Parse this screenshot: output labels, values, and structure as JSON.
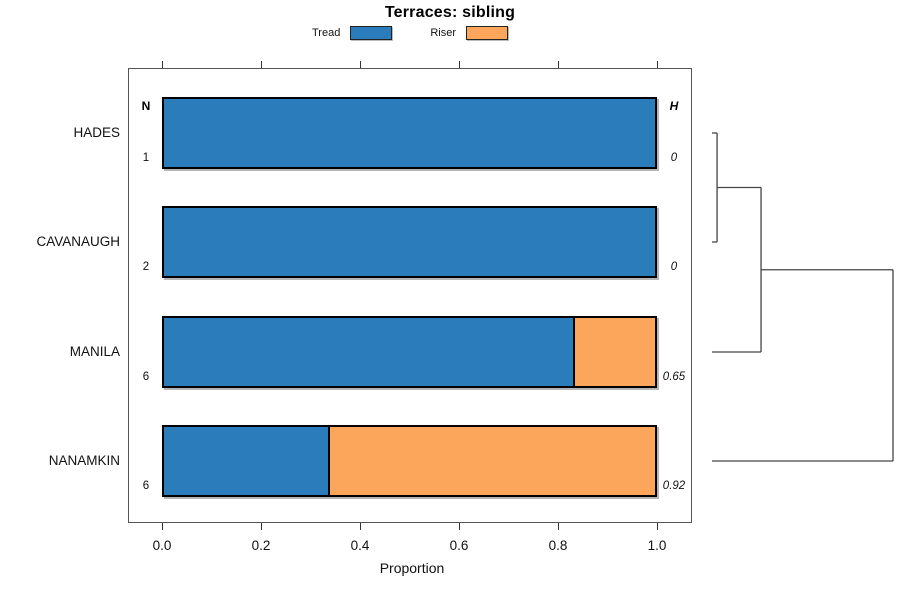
{
  "title": "Terraces: sibling",
  "legend": {
    "items": [
      {
        "label": "Tread",
        "color": "#2B7CBA"
      },
      {
        "label": "Riser",
        "color": "#FBA65B"
      }
    ]
  },
  "columns": {
    "n_header": "N",
    "h_header": "H"
  },
  "xaxis": {
    "label": "Proportion",
    "ticks": [
      "0.0",
      "0.2",
      "0.4",
      "0.6",
      "0.8",
      "1.0"
    ],
    "tick_values": [
      0.0,
      0.2,
      0.4,
      0.6,
      0.8,
      1.0
    ],
    "range": [
      0,
      1
    ]
  },
  "chart_data": {
    "type": "bar",
    "orientation": "horizontal",
    "stacked": true,
    "title": "Terraces: sibling",
    "xlabel": "Proportion",
    "xlim": [
      0,
      1
    ],
    "grid": false,
    "legend_position": "top",
    "categories": [
      "HADES",
      "CAVANAUGH",
      "MANILA",
      "NANAMKIN"
    ],
    "n_values": [
      "1",
      "2",
      "6",
      "6"
    ],
    "h_values": [
      "0",
      "0",
      "0.65",
      "0.92"
    ],
    "series": [
      {
        "name": "Tread",
        "color": "#2B7CBA",
        "values": [
          1.0,
          1.0,
          0.833,
          0.333
        ]
      },
      {
        "name": "Riser",
        "color": "#FBA65B",
        "values": [
          0.0,
          0.0,
          0.167,
          0.667
        ]
      }
    ],
    "dendrogram": {
      "orientation": "right",
      "line_color": "#444444",
      "merges": [
        {
          "children": [
            0,
            1
          ],
          "height": 0.028
        },
        {
          "children": [
            "m0",
            2
          ],
          "height": 0.271
        },
        {
          "children": [
            "m1",
            3
          ],
          "height": 1.0
        }
      ]
    }
  }
}
